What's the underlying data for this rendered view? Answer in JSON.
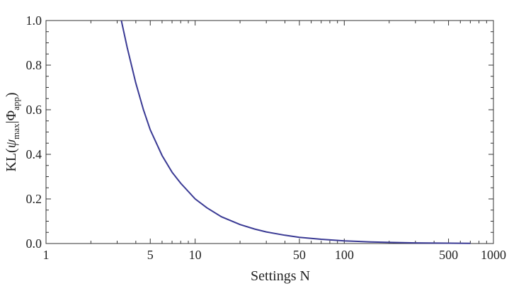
{
  "chart_data": {
    "type": "line",
    "title": "",
    "xlabel": "Settings N",
    "ylabel": {
      "base": "KL(",
      "psi": "ψ",
      "psi_sub": "max",
      "bar": "|",
      "phi": "Φ",
      "phi_sub": "app",
      "close": ")"
    },
    "x_scale": "log",
    "xlim": [
      1,
      1000
    ],
    "ylim": [
      0,
      1
    ],
    "x_ticks": [
      1,
      5,
      10,
      50,
      100,
      500,
      1000
    ],
    "x_tick_labels": [
      "1",
      "5",
      "10",
      "50",
      "100",
      "500",
      "1000"
    ],
    "y_ticks": [
      0,
      0.2,
      0.4,
      0.6,
      0.8,
      1.0
    ],
    "y_tick_labels": [
      "0.0",
      "0.2",
      "0.4",
      "0.6",
      "0.8",
      "1.0"
    ],
    "grid": false,
    "series": [
      {
        "color": "#3a3a94",
        "x": [
          3.2,
          3.5,
          4,
          4.5,
          5,
          6,
          7,
          8,
          10,
          12,
          15,
          20,
          25,
          30,
          40,
          50,
          70,
          100,
          150,
          200,
          300,
          500,
          700
        ],
        "y": [
          1.0,
          0.88,
          0.72,
          0.6,
          0.51,
          0.395,
          0.32,
          0.27,
          0.2,
          0.16,
          0.12,
          0.085,
          0.065,
          0.052,
          0.037,
          0.028,
          0.019,
          0.012,
          0.007,
          0.005,
          0.003,
          0.0015,
          0.001
        ]
      }
    ]
  }
}
